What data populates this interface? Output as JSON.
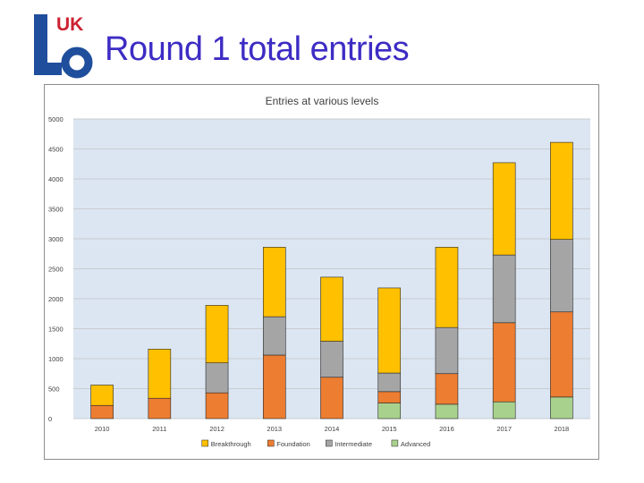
{
  "slide": {
    "title": "Round 1 total entries",
    "logo_text": "UK"
  },
  "colors": {
    "title": "#3d2cc4",
    "logo_blue": "#1f4e9c",
    "logo_red": "#cc2233",
    "plot_bg": "#dce6f2"
  },
  "chart_data": {
    "type": "bar",
    "stacked": true,
    "title": "Entries at various levels",
    "xlabel": "",
    "ylabel": "",
    "ylim": [
      0,
      5000
    ],
    "yticks": [
      0,
      500,
      1000,
      1500,
      2000,
      2500,
      3000,
      3500,
      4000,
      4500,
      5000
    ],
    "grid": true,
    "legend_position": "bottom",
    "categories": [
      "2010",
      "2011",
      "2012",
      "2013",
      "2014",
      "2015",
      "2016",
      "2017",
      "2018"
    ],
    "series": [
      {
        "name": "Advanced",
        "color": "#a9d18e",
        "values": [
          0,
          0,
          0,
          0,
          0,
          260,
          240,
          280,
          360
        ]
      },
      {
        "name": "Foundation",
        "color": "#ed7d31",
        "values": [
          220,
          340,
          430,
          1060,
          690,
          190,
          510,
          1320,
          1420
        ]
      },
      {
        "name": "Intermediate",
        "color": "#a5a5a5",
        "values": [
          0,
          0,
          500,
          640,
          600,
          310,
          770,
          1130,
          1210
        ]
      },
      {
        "name": "Breakthrough",
        "color": "#ffc000",
        "values": [
          340,
          820,
          960,
          1160,
          1070,
          1420,
          1340,
          1540,
          1620
        ]
      }
    ],
    "legend": [
      {
        "name": "Breakthrough",
        "color": "#ffc000"
      },
      {
        "name": "Foundation",
        "color": "#ed7d31"
      },
      {
        "name": "Intermediate",
        "color": "#a5a5a5"
      },
      {
        "name": "Advanced",
        "color": "#a9d18e"
      }
    ]
  }
}
